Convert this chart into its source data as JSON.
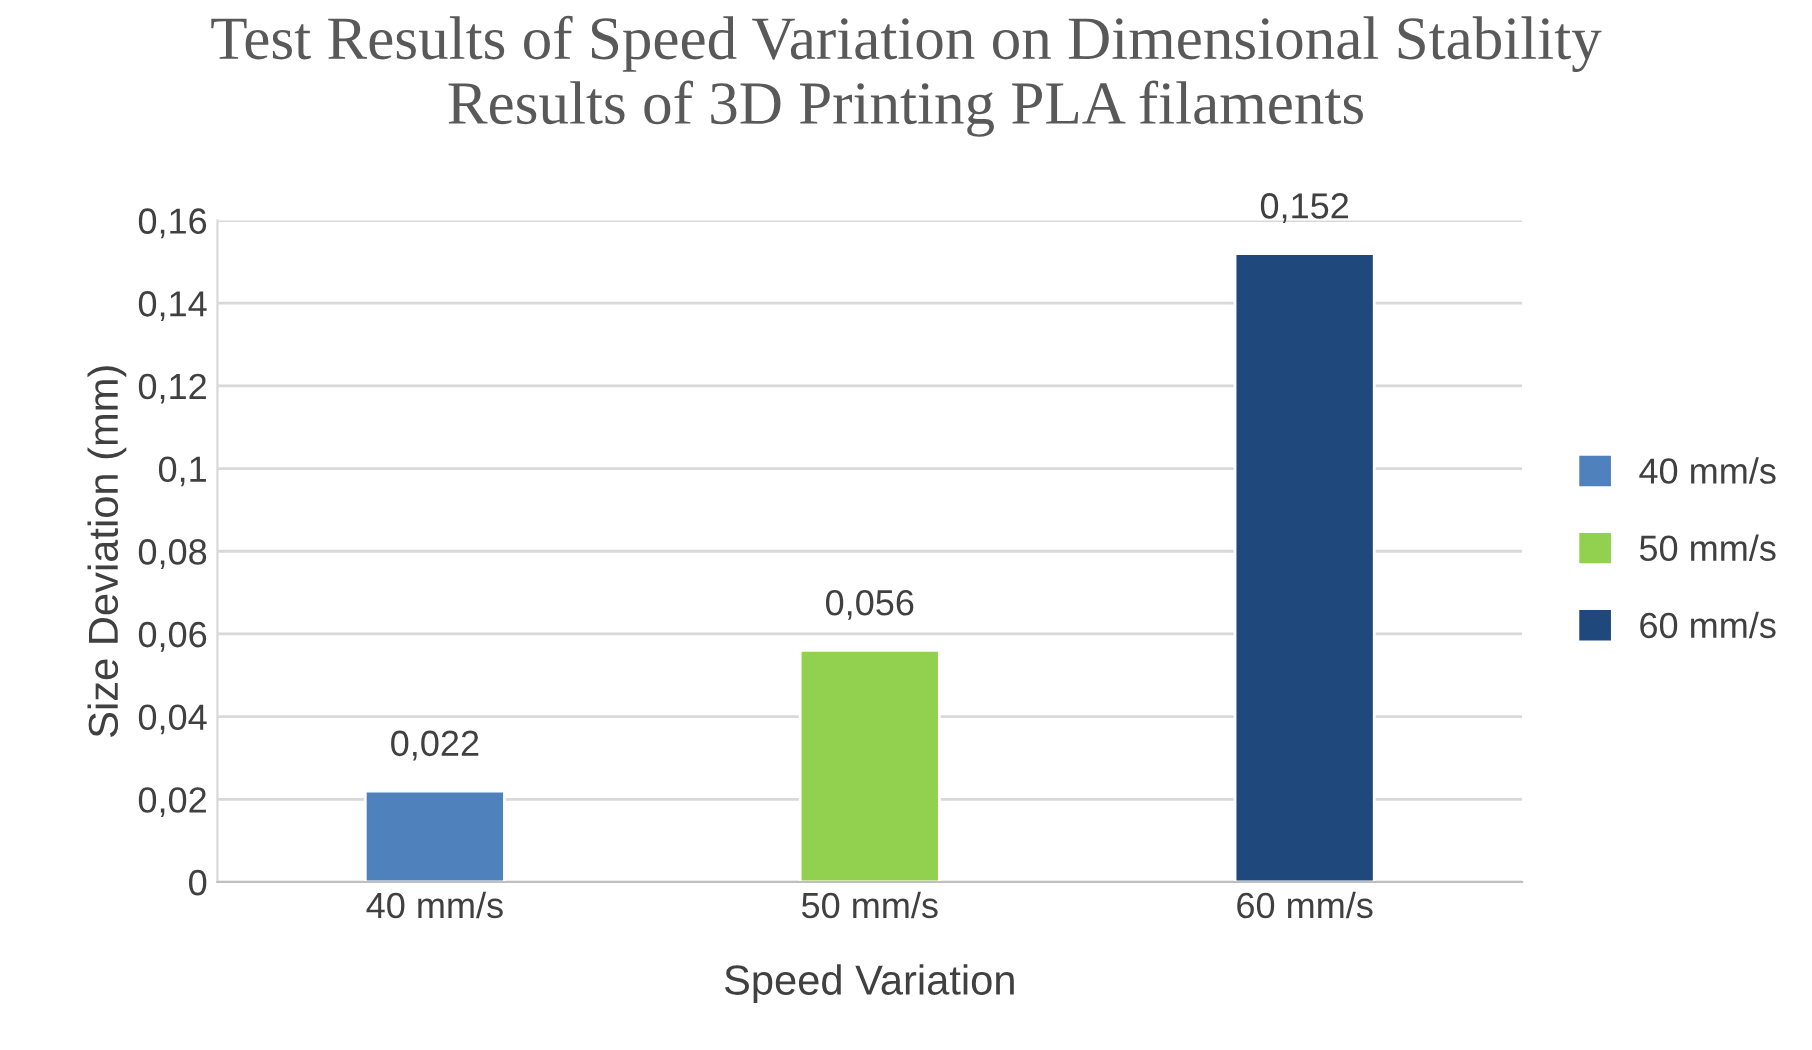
{
  "chart_data": {
    "type": "bar",
    "title": "Test Results of Speed Variation on Dimensional Stability\nResults of 3D Printing PLA filaments",
    "xlabel": "Speed Variation",
    "ylabel": "Size Deviation (mm)",
    "categories": [
      "40 mm/s",
      "50 mm/s",
      "60 mm/s"
    ],
    "series": [
      {
        "name": "40 mm/s",
        "color": "#4f81bd",
        "values": [
          0.022,
          null,
          null
        ],
        "value_labels": [
          "0,022",
          null,
          null
        ]
      },
      {
        "name": "50 mm/s",
        "color": "#92d050",
        "values": [
          null,
          0.056,
          null
        ],
        "value_labels": [
          null,
          "0,056",
          null
        ]
      },
      {
        "name": "60 mm/s",
        "color": "#1f497d",
        "values": [
          null,
          null,
          0.152
        ],
        "value_labels": [
          null,
          null,
          "0,152"
        ]
      }
    ],
    "ylim": [
      0,
      0.16
    ],
    "yticks": [
      0,
      {
        "value": 0.02,
        "label": "0,02"
      },
      {
        "value": 0.04,
        "label": "0,04"
      },
      {
        "value": 0.06,
        "label": "0,06"
      },
      {
        "value": 0.08,
        "label": "0,08"
      },
      {
        "value": 0.1,
        "label": "0,1"
      },
      {
        "value": 0.12,
        "label": "0,12"
      },
      {
        "value": 0.14,
        "label": "0,14"
      },
      {
        "value": 0.16,
        "label": "0,16"
      }
    ],
    "grid": "y",
    "legend": "right"
  }
}
